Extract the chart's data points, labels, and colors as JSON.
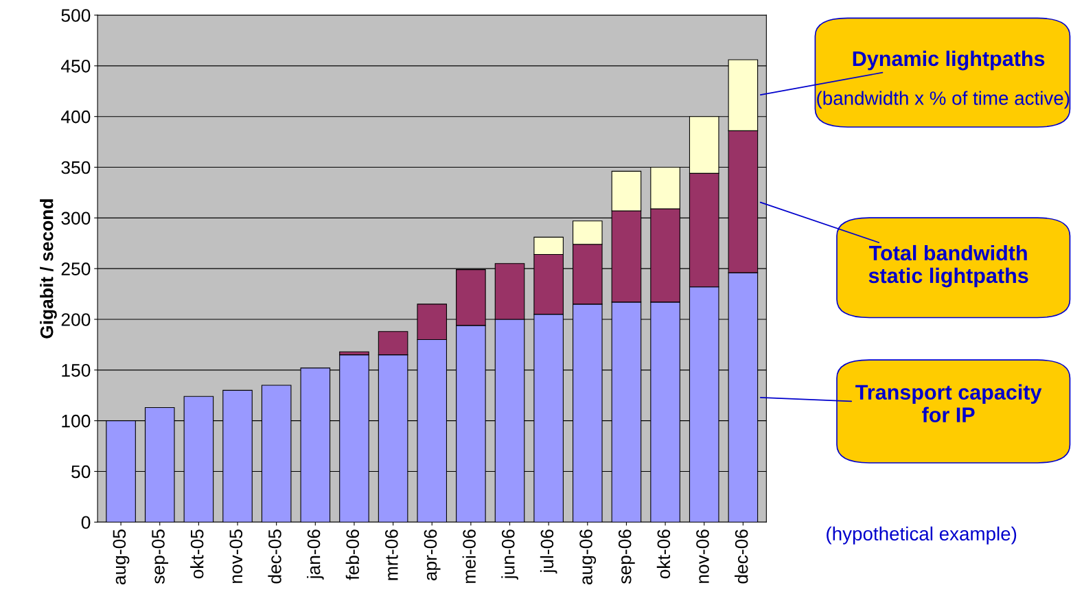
{
  "chart_data": {
    "type": "bar",
    "stacked": true,
    "ylabel": "Gigabit / second",
    "categories": [
      "aug-05",
      "sep-05",
      "okt-05",
      "nov-05",
      "dec-05",
      "jan-06",
      "feb-06",
      "mrt-06",
      "apr-06",
      "mei-06",
      "jun-06",
      "jul-06",
      "aug-06",
      "sep-06",
      "okt-06",
      "nov-06",
      "dec-06"
    ],
    "series": [
      {
        "name": "Transport capacity for IP",
        "color": "#9999ff",
        "values": [
          100,
          113,
          124,
          130,
          135,
          152,
          165,
          165,
          180,
          194,
          200,
          205,
          215,
          217,
          217,
          232,
          246
        ]
      },
      {
        "name": "Total bandwidth static lightpaths",
        "color": "#993366",
        "values": [
          null,
          null,
          null,
          null,
          null,
          null,
          3,
          23,
          35,
          55,
          55,
          59,
          59,
          90,
          92,
          112,
          140
        ]
      },
      {
        "name": "Dynamic lightpaths",
        "color": "#ffffcc",
        "values": [
          null,
          null,
          null,
          null,
          null,
          null,
          null,
          null,
          null,
          null,
          null,
          17,
          23,
          39,
          41,
          56,
          70
        ]
      }
    ],
    "ylim": [
      0,
      500
    ],
    "yticks": [
      0,
      50,
      100,
      150,
      200,
      250,
      300,
      350,
      400,
      450,
      500
    ],
    "grid": "y",
    "annotations": [
      "(bandwidth x % of time active)",
      "(hypothetical example)"
    ]
  }
}
